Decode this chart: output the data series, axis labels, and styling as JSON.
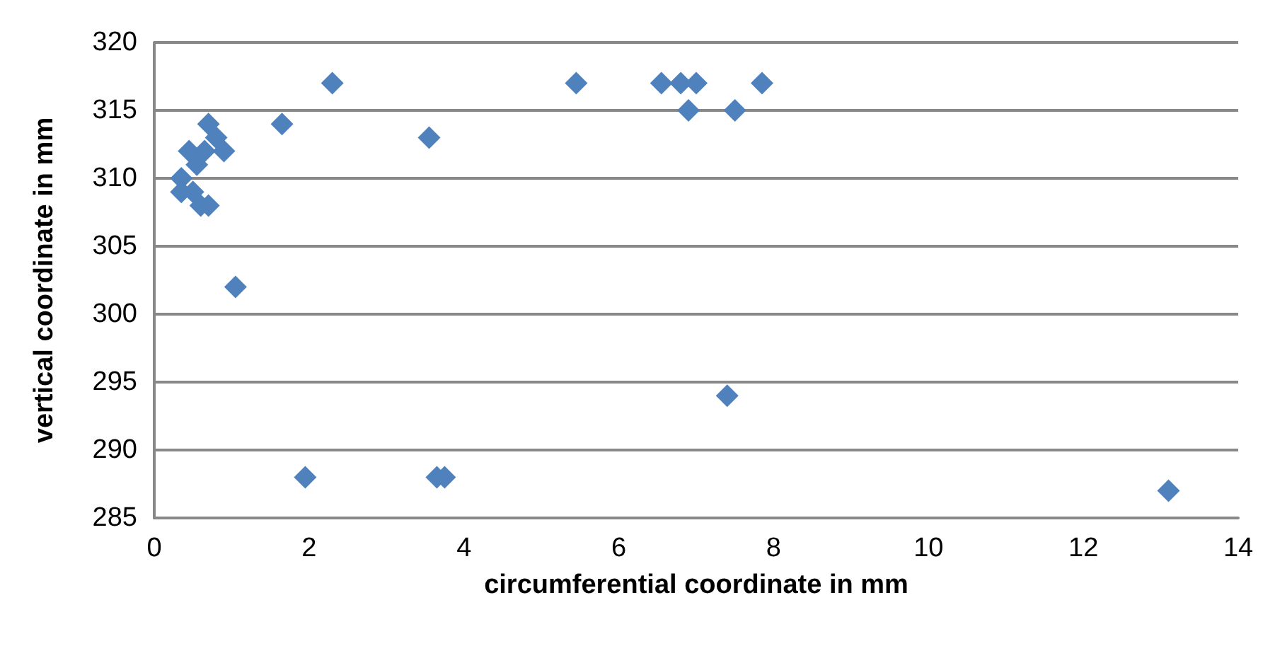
{
  "chart_data": {
    "type": "scatter",
    "xlabel": "circumferential coordinate in mm",
    "ylabel": "vertical coordinate in mm",
    "x": [
      0.35,
      0.35,
      0.45,
      0.5,
      0.55,
      0.6,
      0.65,
      0.7,
      0.7,
      0.8,
      0.9,
      1.05,
      1.65,
      1.95,
      2.3,
      3.55,
      3.65,
      3.75,
      5.45,
      6.55,
      6.8,
      7.0,
      6.9,
      7.5,
      7.85,
      7.4,
      13.1
    ],
    "series": [
      {
        "color": "#4f81bd",
        "values": [
          310,
          309,
          312,
          309,
          311,
          308,
          312,
          314,
          308,
          313,
          312,
          302,
          314,
          288,
          317,
          313,
          288,
          288,
          317,
          317,
          317,
          317,
          315,
          315,
          317,
          294,
          287
        ]
      }
    ],
    "xlim": [
      0,
      14
    ],
    "xticks": [
      0,
      2,
      4,
      6,
      8,
      10,
      12,
      14
    ],
    "ylim": [
      285,
      320
    ],
    "yticks": [
      285,
      290,
      295,
      300,
      305,
      310,
      315,
      320
    ],
    "grid": "y",
    "marker": "diamond"
  }
}
